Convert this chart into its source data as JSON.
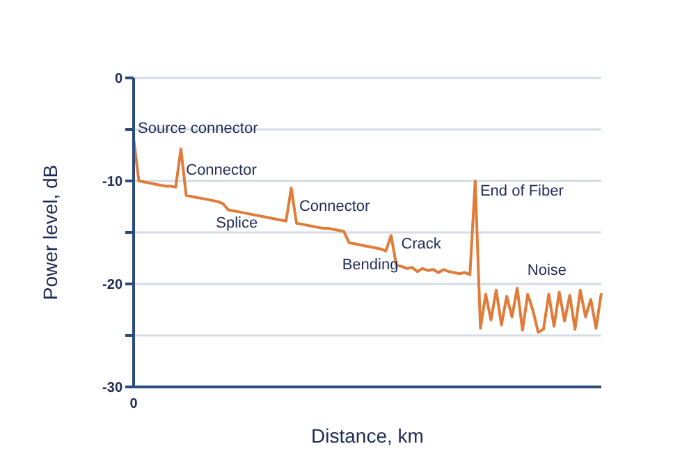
{
  "chart_data": {
    "type": "line",
    "xlabel": "Distance, km",
    "ylabel": "Power level, dB",
    "ylim": [
      -30,
      0
    ],
    "yticks": [
      -30,
      {
        "value": -25,
        "label": null
      },
      -20,
      {
        "value": -15,
        "label": null
      },
      -10,
      {
        "value": -5,
        "label": null
      },
      0
    ],
    "grid": "y",
    "categories": [
      "0",
      null,
      null,
      null,
      null,
      null,
      null,
      null,
      null,
      null,
      null,
      null,
      null,
      null,
      null,
      null,
      null,
      null,
      null,
      null,
      null,
      null,
      null,
      null,
      null,
      null,
      null,
      null,
      null,
      null,
      null,
      null,
      null,
      null,
      null,
      null,
      null,
      null,
      null,
      null,
      null,
      null,
      null,
      null,
      null,
      null,
      null,
      null,
      null,
      null,
      null,
      null,
      null,
      null,
      null,
      null,
      null,
      null,
      null,
      null,
      null,
      null,
      null,
      null,
      null,
      null,
      null,
      null,
      null,
      null,
      null,
      null,
      null,
      null,
      null,
      null,
      null,
      null,
      null,
      null,
      null,
      null,
      null,
      null,
      null,
      null,
      null,
      null,
      null,
      null
    ],
    "series": [
      {
        "color": "#e07b39",
        "values": [
          -5.9,
          -10.0,
          -10.1,
          -10.2,
          -10.3,
          -10.4,
          -10.5,
          -10.5,
          -10.6,
          -6.9,
          -11.4,
          -11.5,
          -11.6,
          -11.7,
          -11.8,
          -11.9,
          -12.0,
          -12.2,
          -12.8,
          -12.9,
          -13.0,
          -13.1,
          -13.2,
          -13.3,
          -13.4,
          -13.5,
          -13.6,
          -13.7,
          -13.8,
          -13.9,
          -10.7,
          -14.1,
          -14.2,
          -14.3,
          -14.4,
          -14.5,
          -14.6,
          -14.6,
          -14.7,
          -14.8,
          -14.9,
          -16.0,
          -16.1,
          -16.2,
          -16.3,
          -16.4,
          -16.5,
          -16.6,
          -16.8,
          -15.3,
          -18.2,
          -18.3,
          -18.5,
          -18.4,
          -18.8,
          -18.5,
          -18.7,
          -18.6,
          -18.9,
          -18.6,
          -18.8,
          -18.9,
          -19.0,
          -18.9,
          -19.1,
          -10.0,
          -24.3,
          -21.0,
          -23.5,
          -20.6,
          -24.0,
          -21.2,
          -23.2,
          -20.4,
          -24.5,
          -21.0,
          -22.6,
          -24.7,
          -24.4,
          -21.0,
          -24.1,
          -20.8,
          -23.6,
          -21.1,
          -24.4,
          -20.6,
          -23.2,
          -21.5,
          -24.3,
          -20.9
        ]
      }
    ],
    "annotations": [
      "Source connector",
      "Connector",
      "Splice",
      "Connector",
      "Bending",
      "Crack",
      "End of Fiber",
      "Noise"
    ]
  }
}
